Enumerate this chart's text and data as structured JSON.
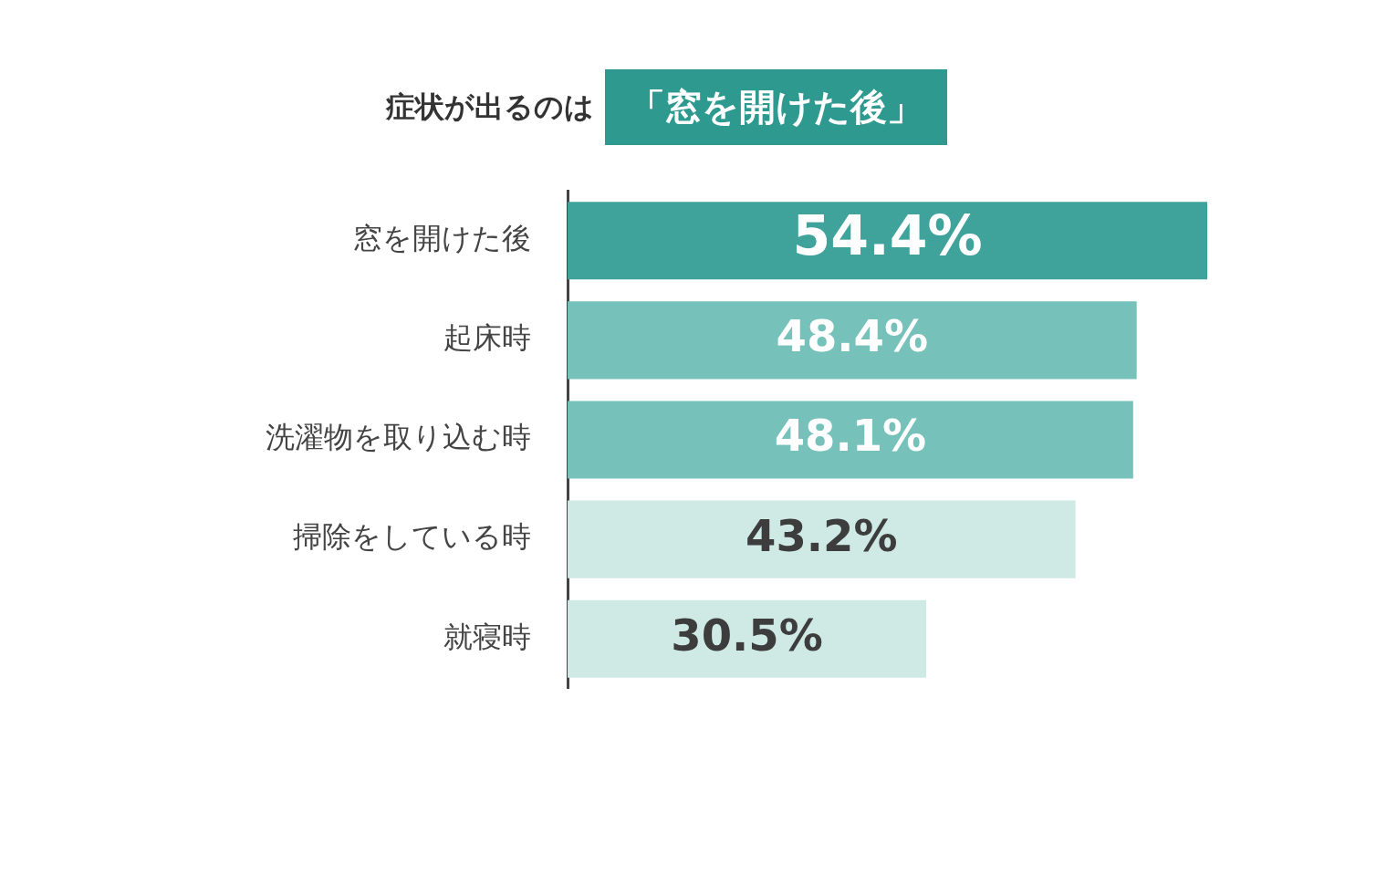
{
  "chart_data": {
    "type": "bar",
    "orientation": "horizontal",
    "title": "症状が出るのは",
    "subtitle": "「窓を開けた後」",
    "categories": [
      "窓を開けた後",
      "起床時",
      "洗濯物を取り込む時",
      "掃除をしている時",
      "就寝時"
    ],
    "values": [
      54.4,
      48.4,
      48.1,
      43.2,
      30.5
    ],
    "colors": [
      "#3fa39b",
      "#76c2bb",
      "#76c2bb",
      "#cfe9e5",
      "#cfe9e5"
    ],
    "value_labels": [
      "54.4%",
      "48.4%",
      "48.1%",
      "43.2%",
      "30.5%"
    ],
    "legend": false
  }
}
